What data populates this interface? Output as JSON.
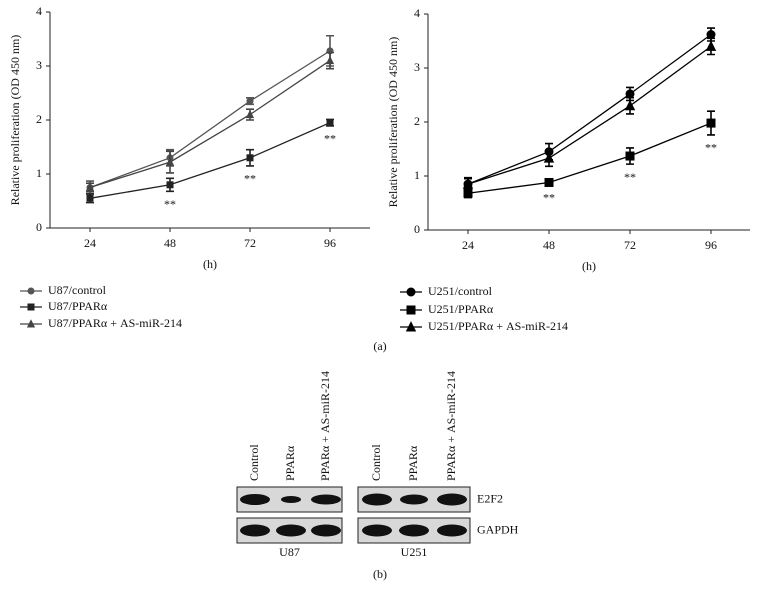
{
  "chart_data": [
    {
      "type": "line",
      "y_label": "Relative proliferation (OD 450 nm)",
      "x_label": "(h)",
      "categories": [
        "24",
        "48",
        "72",
        "96"
      ],
      "ylim": [
        0,
        4
      ],
      "yticks": [
        0,
        1,
        2,
        3,
        4
      ],
      "series": [
        {
          "name": "U87/control",
          "color": "#555555",
          "marker": "circle",
          "values": [
            0.75,
            1.3,
            2.35,
            3.28
          ],
          "errors": [
            0.12,
            0.15,
            0.06,
            0.28
          ]
        },
        {
          "name": "U87/PPARα",
          "color": "#222222",
          "marker": "square",
          "values": [
            0.55,
            0.8,
            1.3,
            1.95
          ],
          "errors": [
            0.08,
            0.12,
            0.15,
            0.06
          ]
        },
        {
          "name": "U87/PPARα + AS-miR-214",
          "color": "#444444",
          "marker": "triangle",
          "values": [
            0.75,
            1.22,
            2.1,
            3.1
          ],
          "errors": [
            0.08,
            0.2,
            0.1,
            0.15
          ]
        }
      ],
      "annotations": [
        {
          "text": "**",
          "at": "48"
        },
        {
          "text": "**",
          "at": "72"
        },
        {
          "text": "**",
          "at": "96"
        }
      ]
    },
    {
      "type": "line",
      "y_label": "Relative proliferation (OD 450 nm)",
      "x_label": "(h)",
      "categories": [
        "24",
        "48",
        "72",
        "96"
      ],
      "ylim": [
        0,
        4
      ],
      "yticks": [
        0,
        1,
        2,
        3,
        4
      ],
      "series": [
        {
          "name": "U251/control",
          "color": "#000000",
          "marker": "circle",
          "values": [
            0.85,
            1.45,
            2.52,
            3.62
          ],
          "errors": [
            0.12,
            0.15,
            0.12,
            0.12
          ]
        },
        {
          "name": "U251/PPARα",
          "color": "#000000",
          "marker": "square",
          "values": [
            0.68,
            0.88,
            1.37,
            1.98
          ],
          "errors": [
            0.08,
            0.04,
            0.15,
            0.22
          ]
        },
        {
          "name": "U251/PPARα + AS-miR-214",
          "color": "#000000",
          "marker": "triangle",
          "values": [
            0.85,
            1.33,
            2.3,
            3.4
          ],
          "errors": [
            0.1,
            0.15,
            0.15,
            0.15
          ]
        }
      ],
      "annotations": [
        {
          "text": "**",
          "at": "48"
        },
        {
          "text": "**",
          "at": "72"
        },
        {
          "text": "**",
          "at": "96"
        }
      ]
    }
  ],
  "panel_labels": [
    "(a)",
    "(b)"
  ],
  "blot": {
    "groups": [
      {
        "name": "U87",
        "lanes": [
          "Control",
          "PPARα",
          "PPARα + AS-miR-214"
        ]
      },
      {
        "name": "U251",
        "lanes": [
          "Control",
          "PPARα",
          "PPARα + AS-miR-214"
        ]
      }
    ],
    "rows": [
      "E2F2",
      "GAPDH"
    ]
  }
}
